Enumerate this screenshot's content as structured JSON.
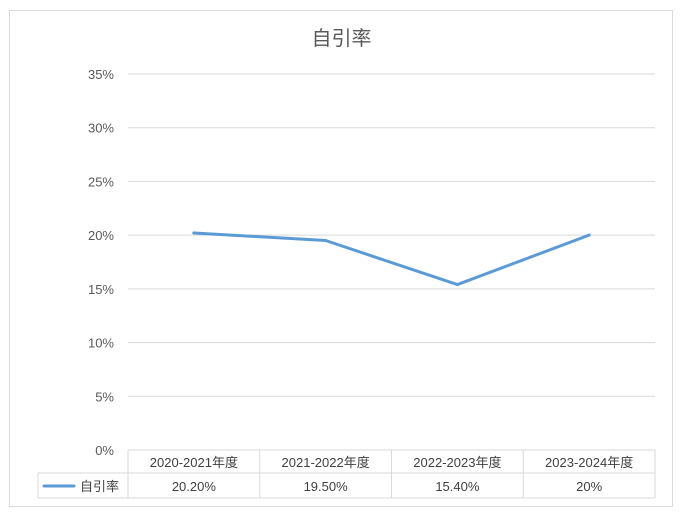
{
  "chart_data": {
    "type": "line",
    "title": "自引率",
    "categories": [
      "2020-2021年度",
      "2021-2022年度",
      "2022-2023年度",
      "2023-2024年度"
    ],
    "series": [
      {
        "name": "自引率",
        "values": [
          20.2,
          19.5,
          15.4,
          20.0
        ],
        "color": "#5b9bd5"
      }
    ],
    "data_table_values": [
      "20.20%",
      "19.50%",
      "15.40%",
      "20%"
    ],
    "y_ticks": [
      "0%",
      "5%",
      "10%",
      "15%",
      "20%",
      "25%",
      "30%",
      "35%"
    ],
    "ylim": [
      0,
      35
    ],
    "grid": true,
    "legend": "data-table"
  }
}
